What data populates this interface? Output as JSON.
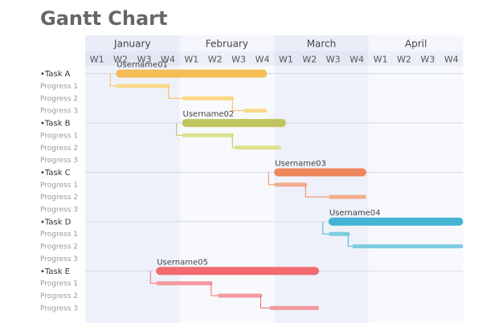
{
  "chart_data": {
    "type": "gantt",
    "title": "Gantt Chart",
    "months": [
      "January",
      "February",
      "March",
      "April"
    ],
    "weeks": [
      "W1",
      "W2",
      "W3",
      "W4"
    ],
    "tasks": [
      {
        "label": "•Task A",
        "user": "Username01",
        "color": "#f5bd55",
        "sub_color": "#fbd98c",
        "span": [
          1.3,
          7.7
        ],
        "progress": [
          {
            "label": "Progress 1",
            "span": [
              1.3,
              3.6
            ]
          },
          {
            "label": "Progress 2",
            "span": [
              4.1,
              6.3
            ]
          },
          {
            "label": "Progress 3",
            "span": [
              6.7,
              7.7
            ]
          }
        ]
      },
      {
        "label": "•Task B",
        "user": "Username02",
        "color": "#bfc55c",
        "sub_color": "#dde28f",
        "span": [
          4.1,
          8.5
        ],
        "progress": [
          {
            "label": "Progress 1",
            "span": [
              4.1,
              6.3
            ]
          },
          {
            "label": "Progress 2",
            "span": [
              6.3,
              8.3
            ]
          },
          {
            "label": "Progress 3",
            "span": null
          }
        ]
      },
      {
        "label": "•Task C",
        "user": "Username03",
        "color": "#ee875d",
        "sub_color": "#f4ac8e",
        "span": [
          8.0,
          11.9
        ],
        "progress": [
          {
            "label": "Progress 1",
            "span": [
              8.0,
              9.4
            ]
          },
          {
            "label": "Progress 2",
            "span": [
              10.3,
              11.9
            ]
          },
          {
            "label": "Progress 3",
            "span": null
          }
        ]
      },
      {
        "label": "•Task D",
        "user": "Username04",
        "color": "#44b3d4",
        "sub_color": "#7fcce3",
        "span": [
          10.3,
          16.0
        ],
        "progress": [
          {
            "label": "Progress 1",
            "span": [
              10.3,
              11.2
            ]
          },
          {
            "label": "Progress 2",
            "span": [
              11.3,
              16.0
            ]
          },
          {
            "label": "Progress 3",
            "span": null
          }
        ]
      },
      {
        "label": "•Task E",
        "user": "Username05",
        "color": "#f16a6f",
        "sub_color": "#f29aa0",
        "span": [
          3.0,
          9.9
        ],
        "progress": [
          {
            "label": "Progress 1",
            "span": [
              3.0,
              5.4
            ]
          },
          {
            "label": "Progress 2",
            "span": [
              5.6,
              7.5
            ]
          },
          {
            "label": "Progress 3",
            "span": [
              7.8,
              9.9
            ]
          }
        ]
      }
    ]
  }
}
